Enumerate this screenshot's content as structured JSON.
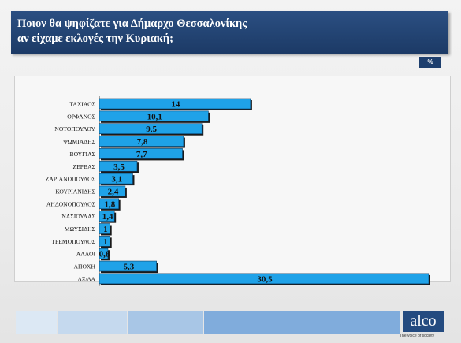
{
  "header": {
    "title_line1": "Ποιον θα ψηφίζατε για Δήμαρχο Θεσσαλονίκης",
    "title_line2": "αν είχαμε εκλογές την Κυριακή;"
  },
  "unit_badge": "%",
  "chart_data": {
    "type": "bar",
    "orientation": "horizontal",
    "categories": [
      "ΤΑΧΙΑΟΣ",
      "ΟΡΦΑΝΟΣ",
      "ΝΟΤΟΠΟΥΛΟΥ",
      "ΨΩΜΙΑΔΗΣ",
      "ΒΟΥΓΙΑΣ",
      "ΖΕΡΒΑΣ",
      "ΖΑΡΙΑΝΟΠΟΥΛΟΣ",
      "ΚΟΥΡΙΑΝΙΔΗΣ",
      "ΑΗΔΟΝΟΠΟΥΛΟΣ",
      "ΝΑΣΙΟΥΛΑΣ",
      "ΜΩΥΣΙΔΗΣ",
      "ΤΡΕΜΟΠΟΥΛΟΣ",
      "ΑΛΛΟΙ",
      "ΑΠΟΧΗ",
      "ΔΞ/ΔΑ"
    ],
    "values": [
      14,
      10.1,
      9.5,
      7.8,
      7.7,
      3.5,
      3.1,
      2.4,
      1.8,
      1.4,
      1,
      1,
      0.8,
      5.3,
      30.5
    ],
    "value_labels": [
      "14",
      "10,1",
      "9,5",
      "7,8",
      "7,7",
      "3,5",
      "3,1",
      "2,4",
      "1,8",
      "1,4",
      "1",
      "1",
      "0,8",
      "5,3",
      "30,5"
    ],
    "xlim": [
      0,
      30.5
    ],
    "bar_color": "#1fa2e8",
    "grid": false,
    "legend": "none"
  },
  "logo": {
    "text": "alco",
    "tagline": "The voice of society"
  }
}
